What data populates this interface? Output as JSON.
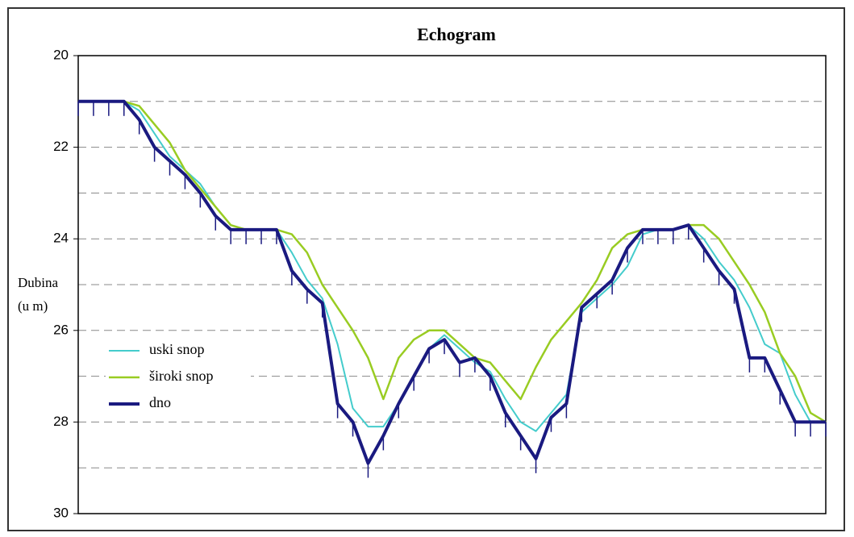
{
  "chart_data": {
    "type": "line",
    "title": "Echogram",
    "ylabel": [
      "Dubina",
      "(u m)"
    ],
    "categories": [
      null,
      null,
      null,
      null,
      null,
      null,
      null,
      null,
      null,
      null,
      null,
      null,
      null,
      null,
      null,
      null,
      null,
      null,
      null,
      null,
      null,
      null,
      null,
      null,
      null,
      null,
      null,
      null,
      null,
      null,
      null,
      null,
      null,
      null,
      null,
      null,
      null,
      null,
      null,
      null,
      null,
      null,
      null,
      null,
      null,
      null,
      null,
      null,
      null,
      null
    ],
    "ylim": [
      20,
      30
    ],
    "y_inverted": true,
    "yticks": [
      20,
      22,
      24,
      26,
      28,
      30
    ],
    "y_grid_lines": [
      21,
      22,
      23,
      24,
      25,
      26,
      27,
      28,
      29
    ],
    "grid": true,
    "legend": "center-left",
    "series": [
      {
        "name": "uski snop",
        "color": "#44cccc",
        "width": 2,
        "values": [
          21,
          21,
          21,
          21,
          21.2,
          21.7,
          22.2,
          22.5,
          22.8,
          23.3,
          23.7,
          23.8,
          23.8,
          23.8,
          24.3,
          24.9,
          25.3,
          26.3,
          27.7,
          28.1,
          28.1,
          27.6,
          27.0,
          26.4,
          26.1,
          26.4,
          26.7,
          26.9,
          27.5,
          28.0,
          28.2,
          27.8,
          27.4,
          25.6,
          25.3,
          25.0,
          24.6,
          23.9,
          23.8,
          23.8,
          23.7,
          24.0,
          24.5,
          24.9,
          25.5,
          26.3,
          26.5,
          27.4,
          28.0,
          28.0
        ]
      },
      {
        "name": "široki snop",
        "color": "#99cc22",
        "width": 2.5,
        "values": [
          21,
          21,
          21,
          21,
          21.1,
          21.5,
          21.9,
          22.5,
          22.9,
          23.3,
          23.7,
          23.8,
          23.8,
          23.8,
          23.9,
          24.3,
          25.0,
          25.5,
          26.0,
          26.6,
          27.5,
          26.6,
          26.2,
          26.0,
          26.0,
          26.3,
          26.6,
          26.7,
          27.1,
          27.5,
          26.8,
          26.2,
          25.8,
          25.4,
          24.9,
          24.2,
          23.9,
          23.8,
          23.8,
          23.8,
          23.7,
          23.7,
          24.0,
          24.5,
          25.0,
          25.6,
          26.5,
          27.0,
          27.8,
          28.0
        ]
      },
      {
        "name": "dno",
        "color": "#1a1a80",
        "width": 4,
        "sounding_ticks": true,
        "values": [
          21,
          21,
          21,
          21,
          21.4,
          22.0,
          22.3,
          22.6,
          23.0,
          23.5,
          23.8,
          23.8,
          23.8,
          23.8,
          24.7,
          25.1,
          25.4,
          27.6,
          28.0,
          28.9,
          28.3,
          27.6,
          27.0,
          26.4,
          26.2,
          26.7,
          26.6,
          27.0,
          27.8,
          28.3,
          28.8,
          27.9,
          27.6,
          25.5,
          25.2,
          24.9,
          24.2,
          23.8,
          23.8,
          23.8,
          23.7,
          24.2,
          24.7,
          25.1,
          26.6,
          26.6,
          27.3,
          28.0,
          28.0,
          28.0
        ]
      }
    ]
  }
}
